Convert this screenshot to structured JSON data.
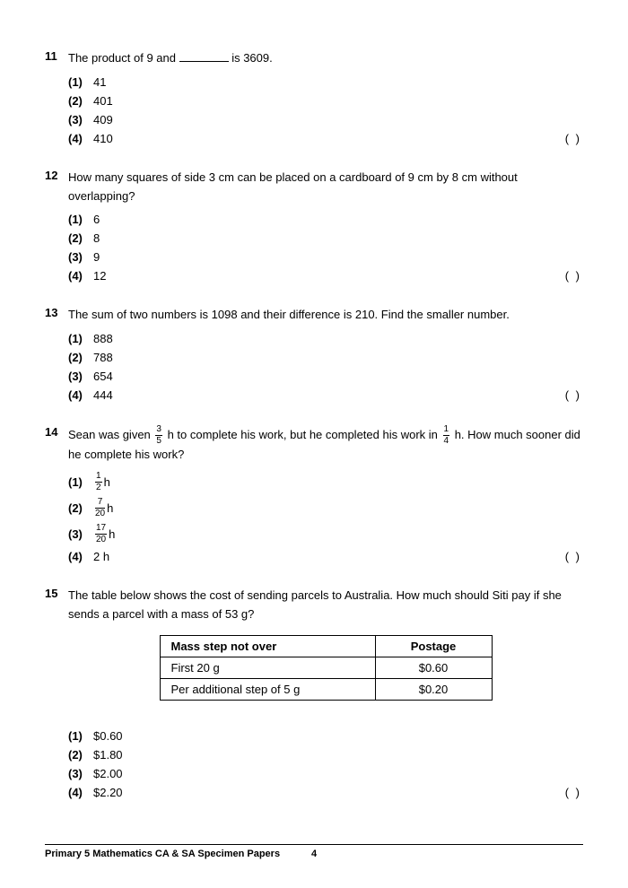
{
  "questions": [
    {
      "num": "11",
      "text_parts": [
        "The product of 9 and ",
        "BLANK",
        " is 3609."
      ],
      "options": [
        {
          "n": "(1)",
          "v": "41"
        },
        {
          "n": "(2)",
          "v": "401"
        },
        {
          "n": "(3)",
          "v": "409"
        },
        {
          "n": "(4)",
          "v": "410"
        }
      ]
    },
    {
      "num": "12",
      "text_parts": [
        "How many squares of side 3 cm can be placed on a cardboard of 9 cm by 8 cm without overlapping?"
      ],
      "options": [
        {
          "n": "(1)",
          "v": "6"
        },
        {
          "n": "(2)",
          "v": "8"
        },
        {
          "n": "(3)",
          "v": "9"
        },
        {
          "n": "(4)",
          "v": "12"
        }
      ]
    },
    {
      "num": "13",
      "text_parts": [
        "The sum of two numbers is 1098 and their difference is 210. Find the smaller number."
      ],
      "options": [
        {
          "n": "(1)",
          "v": "888"
        },
        {
          "n": "(2)",
          "v": "788"
        },
        {
          "n": "(3)",
          "v": "654"
        },
        {
          "n": "(4)",
          "v": "444"
        }
      ]
    },
    {
      "num": "14",
      "text_parts": [
        "Sean was given ",
        {
          "frac": [
            "3",
            "5"
          ]
        },
        " h to complete his work, but he completed his work in ",
        {
          "frac": [
            "1",
            "4"
          ]
        },
        " h. How much sooner did he complete his work?"
      ],
      "options": [
        {
          "n": "(1)",
          "frac": [
            "1",
            "2"
          ],
          "suffix": " h"
        },
        {
          "n": "(2)",
          "frac": [
            "7",
            "20"
          ],
          "suffix": " h"
        },
        {
          "n": "(3)",
          "frac": [
            "17",
            "20"
          ],
          "suffix": " h"
        },
        {
          "n": "(4)",
          "v": "2 h"
        }
      ]
    },
    {
      "num": "15",
      "text_parts": [
        "The table below shows the cost of sending parcels to Australia. How much should Siti pay if she sends a parcel with a mass of 53 g?"
      ],
      "has_table": true,
      "table": {
        "headers": [
          "Mass step not over",
          "Postage"
        ],
        "rows": [
          [
            "First 20 g",
            "$0.60"
          ],
          [
            "Per additional step of 5 g",
            "$0.20"
          ]
        ]
      },
      "options": [
        {
          "n": "(1)",
          "v": "$0.60"
        },
        {
          "n": "(2)",
          "v": "$1.80"
        },
        {
          "n": "(3)",
          "v": "$2.00"
        },
        {
          "n": "(4)",
          "v": "$2.20"
        }
      ]
    }
  ],
  "answer_paren": "(          )",
  "footer": {
    "title": "Primary 5 Mathematics CA & SA Specimen Papers",
    "page": "4"
  }
}
